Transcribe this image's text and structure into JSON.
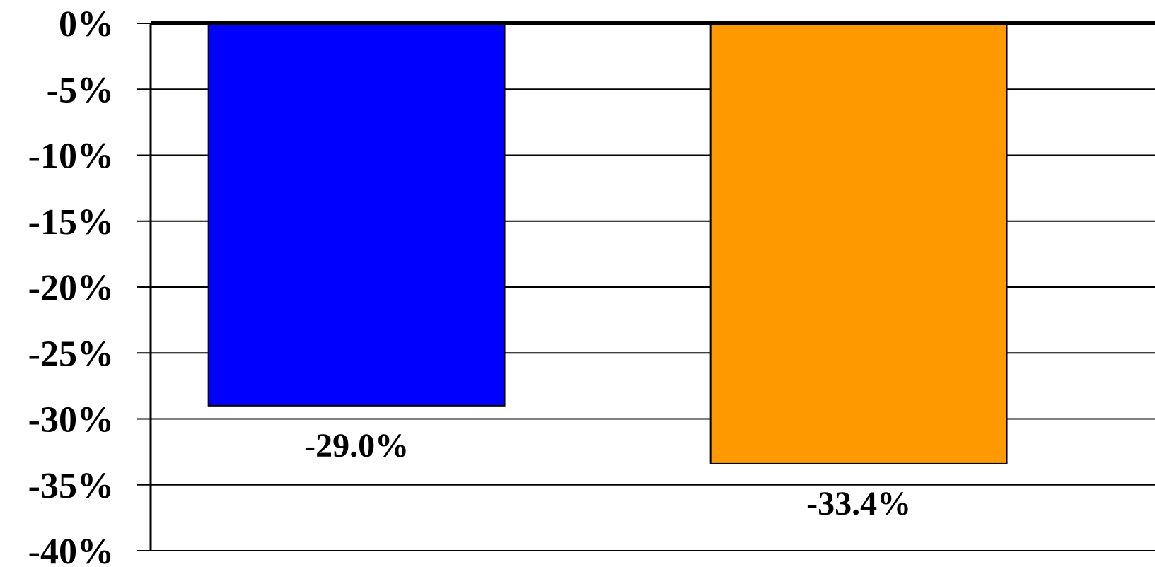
{
  "chart_data": {
    "type": "bar",
    "categories": [
      "",
      ""
    ],
    "values": [
      -29.0,
      -33.4
    ],
    "data_labels": [
      "-29.0%",
      "-33.4%"
    ],
    "bar_colors": [
      "#0000FF",
      "#FF9900"
    ],
    "title": "",
    "xlabel": "",
    "ylabel": "",
    "ylim": [
      -40,
      0
    ],
    "yticks": [
      0,
      -5,
      -10,
      -15,
      -20,
      -25,
      -30,
      -35,
      -40
    ],
    "ytick_labels": [
      "0%",
      "-5%",
      "-10%",
      "-15%",
      "-20%",
      "-25%",
      "-30%",
      "-35%",
      "-40%"
    ],
    "grid": true,
    "legend": "none"
  }
}
